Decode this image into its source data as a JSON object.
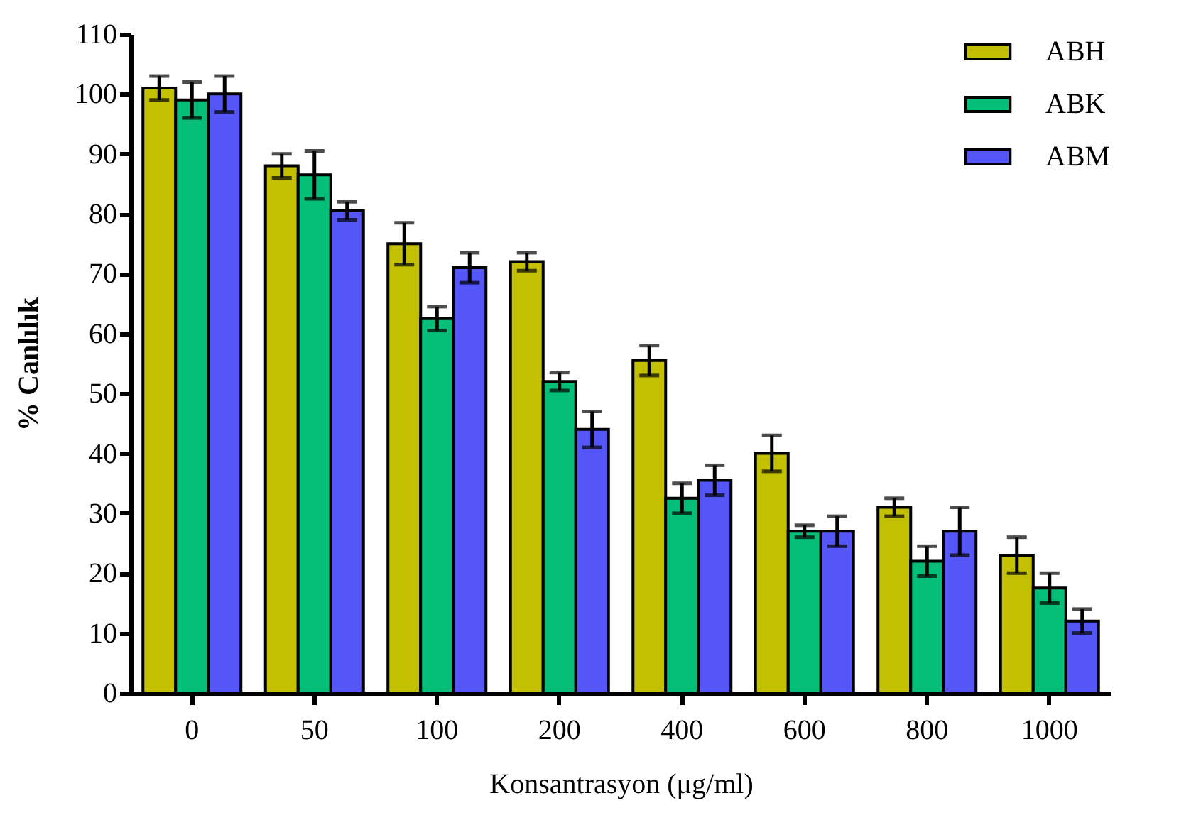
{
  "chart_data": {
    "type": "bar",
    "xlabel": "Konsantrasyon (μg/ml)",
    "ylabel": "% Canlılık",
    "categories": [
      "0",
      "50",
      "100",
      "200",
      "400",
      "600",
      "800",
      "1000"
    ],
    "series": [
      {
        "name": "ABH",
        "color": "#c2c000",
        "values": [
          101,
          88,
          75,
          72,
          55.5,
          40,
          31,
          23
        ],
        "errors": [
          2,
          2,
          3.5,
          1.5,
          2.5,
          3,
          1.5,
          3
        ]
      },
      {
        "name": "ABK",
        "color": "#05bf78",
        "values": [
          99,
          86.5,
          62.5,
          52,
          32.5,
          27,
          22,
          17.5
        ],
        "errors": [
          3,
          4,
          2,
          1.5,
          2.5,
          1,
          2.5,
          2.5
        ]
      },
      {
        "name": "ABM",
        "color": "#5556f8",
        "values": [
          100,
          80.5,
          71,
          44,
          35.5,
          27,
          27,
          12
        ],
        "errors": [
          3,
          1.5,
          2.5,
          3,
          2.5,
          2.5,
          4,
          2
        ]
      }
    ],
    "ylim": [
      0,
      110
    ],
    "yticks": [
      0,
      10,
      20,
      30,
      40,
      50,
      60,
      70,
      80,
      90,
      100,
      110
    ],
    "grid": false,
    "legend": "top right"
  }
}
